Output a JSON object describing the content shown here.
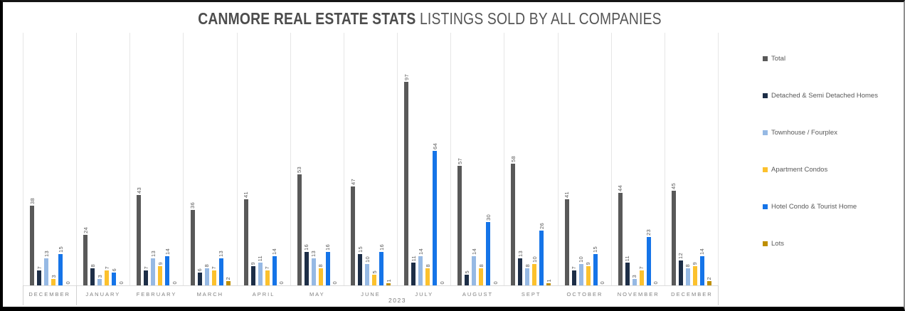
{
  "title": {
    "main": "CANMORE REAL ESTATE STATS",
    "sub": " LISTINGS SOLD BY ALL COMPANIES"
  },
  "chart_data": {
    "type": "bar",
    "title": "CANMORE REAL ESTATE STATS LISTINGS SOLD BY ALL COMPANIES",
    "year_label": "2023",
    "categories": [
      "DECEMBER",
      "JANUARY",
      "FEBRUARY",
      "MARCH",
      "APRIL",
      "MAY",
      "JUNE",
      "JULY",
      "AUGUST",
      "SEPT",
      "OCTOBER",
      "NOVEMBER",
      "DECEMBER"
    ],
    "series": [
      {
        "name": "Total",
        "color": "#595959",
        "values": [
          38,
          24,
          43,
          36,
          41,
          53,
          47,
          97,
          57,
          58,
          41,
          44,
          45
        ]
      },
      {
        "name": "Detached & Semi Detached Homes",
        "color": "#1d2e47",
        "values": [
          7,
          8,
          7,
          6,
          9,
          16,
          15,
          11,
          5,
          13,
          7,
          11,
          12
        ]
      },
      {
        "name": "Townhouse / Fourplex",
        "color": "#96b9e4",
        "values": [
          13,
          3,
          13,
          8,
          11,
          13,
          10,
          14,
          14,
          8,
          10,
          3,
          8
        ]
      },
      {
        "name": "Apartment Condos",
        "color": "#fcc12d",
        "values": [
          3,
          7,
          9,
          7,
          7,
          8,
          5,
          8,
          8,
          10,
          9,
          7,
          9
        ]
      },
      {
        "name": "Hotel Condo & Tourist Home",
        "color": "#1574e8",
        "values": [
          15,
          6,
          14,
          13,
          14,
          16,
          16,
          64,
          30,
          26,
          15,
          23,
          14
        ]
      },
      {
        "name": "Lots",
        "color": "#bf8f00",
        "values": [
          0,
          0,
          0,
          2,
          0,
          0,
          1,
          0,
          0,
          1,
          0,
          0,
          2
        ]
      }
    ],
    "ylim": [
      0,
      100
    ],
    "grid": "vertical category separators only",
    "legend_position": "right",
    "data_labels": "rotated 90deg above each bar",
    "colors": {
      "gridline": "#e6e6e6",
      "axis_text": "#7f7f7f",
      "value_label_text": "#595959",
      "title_text": "#4d4d4d"
    }
  }
}
